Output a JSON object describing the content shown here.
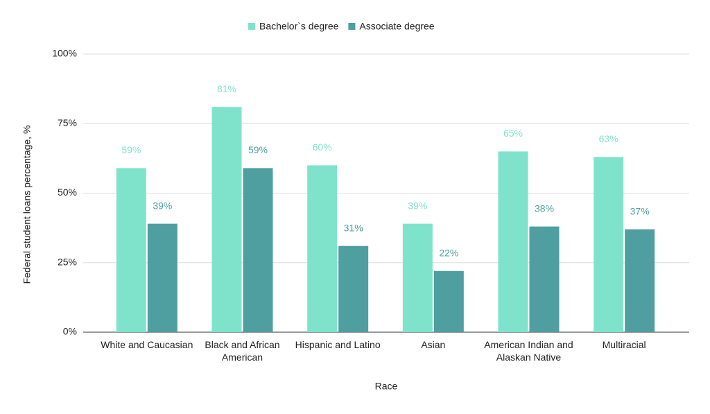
{
  "chart_data": {
    "type": "bar",
    "x_label": "Race",
    "y_label": "Federal student loans percentage, %",
    "categories": [
      "White and Caucasian",
      "Black and African American",
      "Hispanic and Latino",
      "Asian",
      "American Indian and Alaskan Native",
      "Multiracial"
    ],
    "series": [
      {
        "name": "Bachelor`s degree",
        "color": "#7fe3cc",
        "values": [
          59,
          81,
          60,
          39,
          65,
          63
        ],
        "value_labels": [
          "59%",
          "81%",
          "60%",
          "39%",
          "65%",
          "63%"
        ]
      },
      {
        "name": "Associate degree",
        "color": "#4f9ea0",
        "values": [
          39,
          59,
          31,
          22,
          38,
          37
        ],
        "value_labels": [
          "39%",
          "59%",
          "31%",
          "22%",
          "38%",
          "37%"
        ]
      }
    ],
    "ylim": [
      0,
      100
    ],
    "yticks": [
      {
        "value": 0,
        "label": "0%"
      },
      {
        "value": 25,
        "label": "25%"
      },
      {
        "value": 50,
        "label": "50%"
      },
      {
        "value": 75,
        "label": "75%"
      },
      {
        "value": 100,
        "label": "100%"
      }
    ],
    "grid": true,
    "legend": "top"
  }
}
